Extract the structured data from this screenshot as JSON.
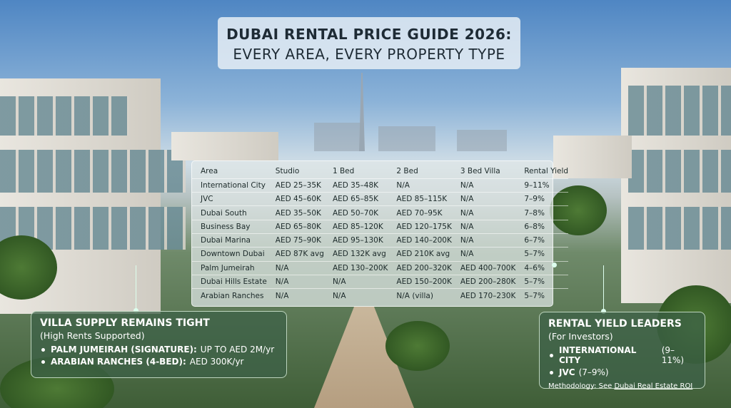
{
  "header": {
    "title_line1": "DUBAI RENTAL PRICE GUIDE 2026:",
    "title_line2": "EVERY AREA, EVERY PROPERTY TYPE"
  },
  "table": {
    "columns": [
      "Area",
      "Studio",
      "1 Bed",
      "2 Bed",
      "3 Bed Villa",
      "Rental Yield"
    ],
    "rows": [
      [
        "International City",
        "AED 25–35K",
        "AED 35–48K",
        "N/A",
        "N/A",
        "9–11%"
      ],
      [
        "JVC",
        "AED 45–60K",
        "AED 65–85K",
        "AED 85–115K",
        "N/A",
        "7–9%"
      ],
      [
        "Dubai South",
        "AED 35–50K",
        "AED 50–70K",
        "AED 70–95K",
        "N/A",
        "7–8%"
      ],
      [
        "Business Bay",
        "AED 65–80K",
        "AED 85–120K",
        "AED 120–175K",
        "N/A",
        "6–8%"
      ],
      [
        "Dubai Marina",
        "AED 75–90K",
        "AED 95–130K",
        "AED 140–200K",
        "N/A",
        "6–7%"
      ],
      [
        "Downtown Dubai",
        "AED 87K avg",
        "AED 132K avg",
        "AED 210K avg",
        "N/A",
        "5–7%"
      ],
      [
        "Palm Jumeirah",
        "N/A",
        "AED 130–200K",
        "AED 200–320K",
        "AED 400–700K",
        "4–6%"
      ],
      [
        "Dubai Hills Estate",
        "N/A",
        "N/A",
        "AED 150–200K",
        "AED 200–280K",
        "5–7%"
      ],
      [
        "Arabian Ranches",
        "N/A",
        "N/A",
        "N/A  (villa)",
        "AED 170–230K",
        "5–7%"
      ]
    ]
  },
  "villa": {
    "title": "VILLA SUPPLY REMAINS TIGHT",
    "subtitle": "(High Rents Supported)",
    "items": [
      {
        "label": "PALM JUMEIRAH (SIGNATURE):",
        "value": "UP TO AED 2M/yr"
      },
      {
        "label": "ARABIAN RANCHES (4-BED):",
        "value": "AED 300K/yr"
      }
    ]
  },
  "yield": {
    "title": "RENTAL YIELD LEADERS",
    "subtitle": "(For Investors)",
    "items": [
      {
        "label": "INTERNATIONAL CITY",
        "value": "(9–11%)"
      },
      {
        "label": "JVC",
        "value": "(7–9%)"
      }
    ],
    "methodology": "Methodology: See",
    "link": "Dubai Real Estate ROI"
  }
}
